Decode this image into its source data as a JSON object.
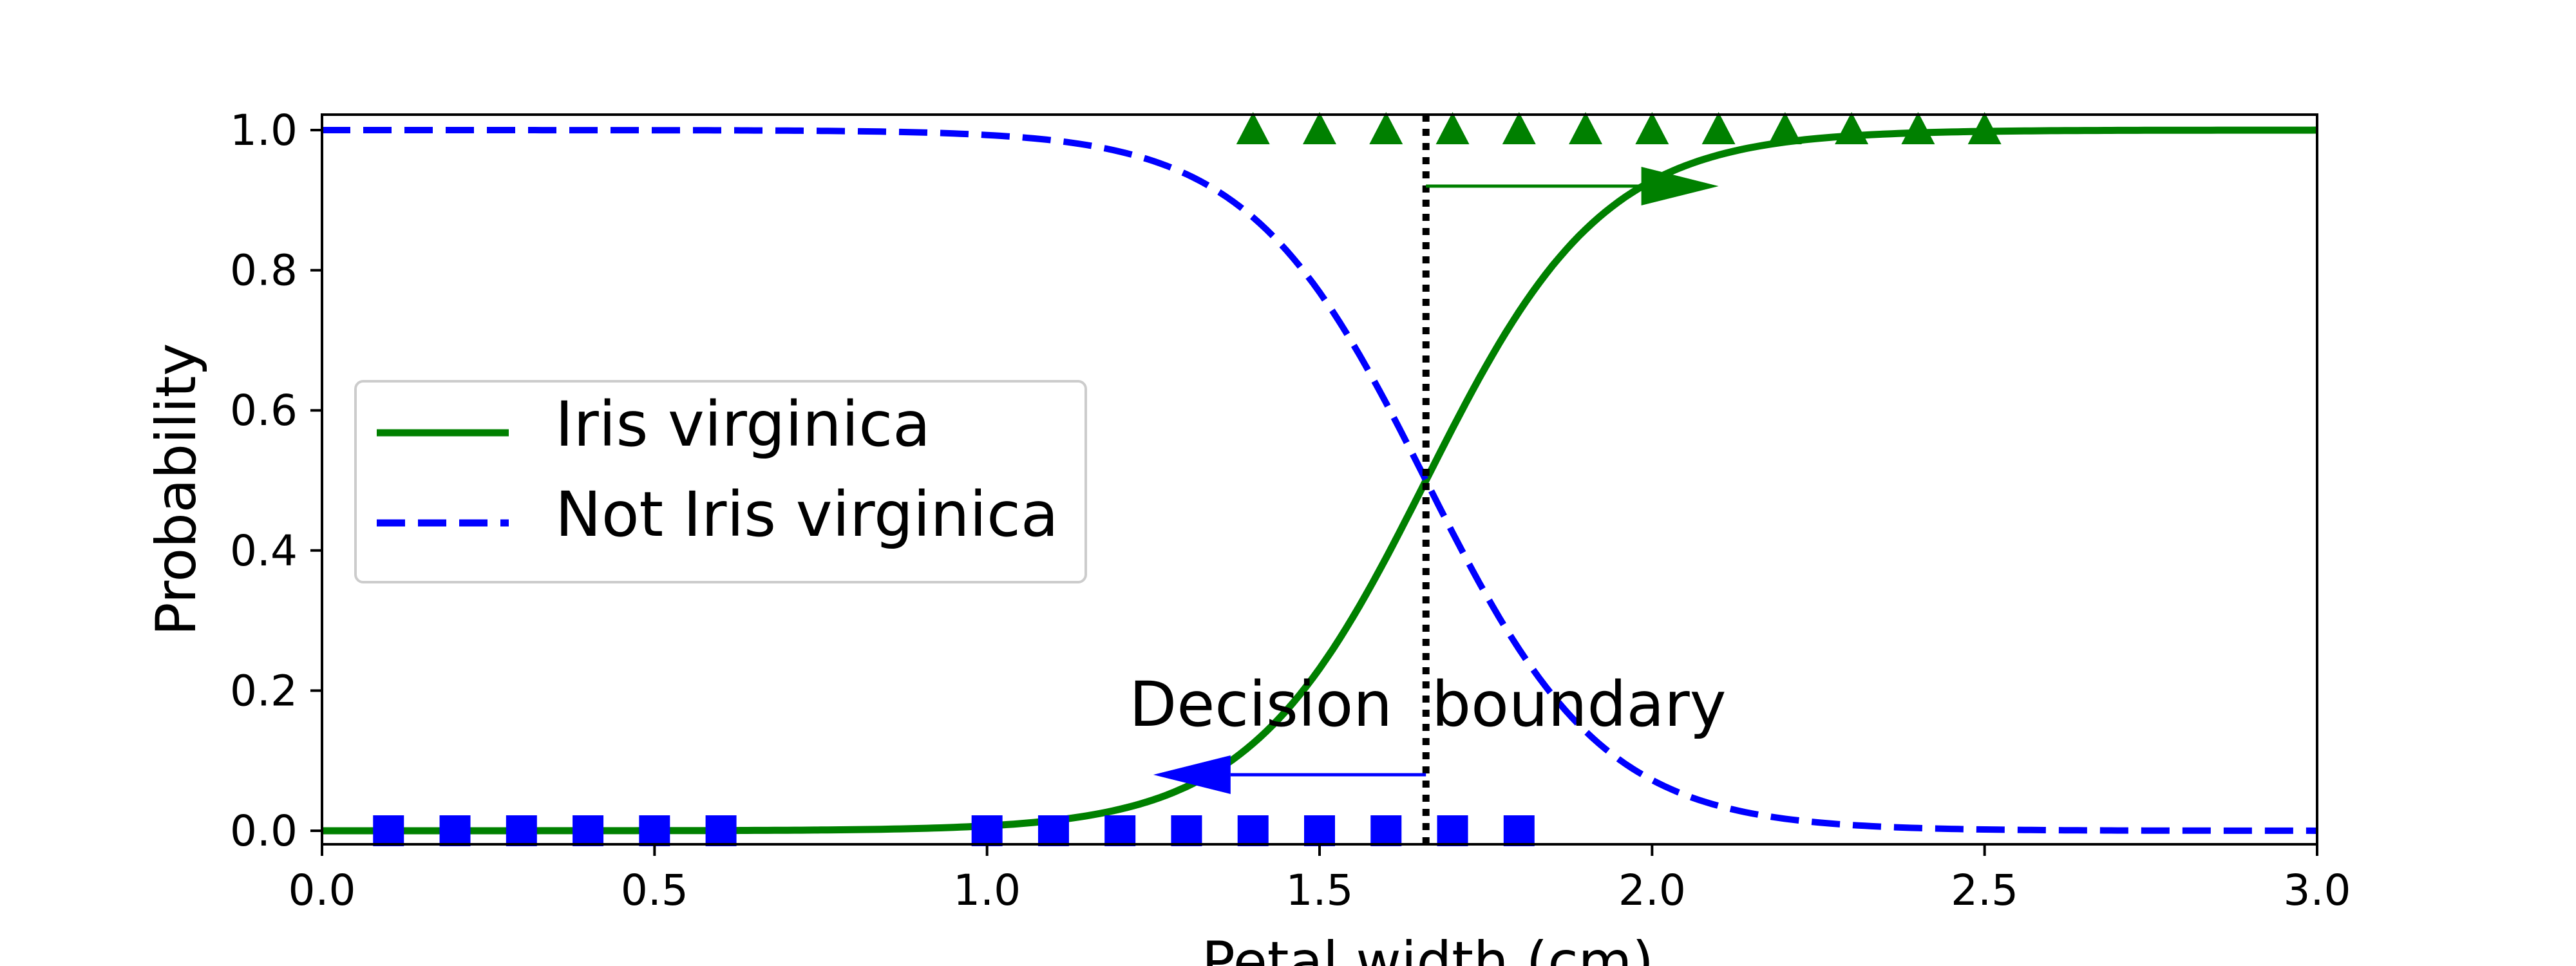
{
  "chart_data": {
    "type": "line",
    "title": "",
    "xlabel": "Petal width (cm)",
    "ylabel": "Probability",
    "xlim": [
      0.0,
      3.0
    ],
    "ylim": [
      0.0,
      1.0
    ],
    "xticks": [
      "0.0",
      "0.5",
      "1.0",
      "1.5",
      "2.0",
      "2.5",
      "3.0"
    ],
    "yticks": [
      "0.0",
      "0.2",
      "0.4",
      "0.6",
      "0.8",
      "1.0"
    ],
    "grid": false,
    "legend_position": "center-left",
    "decision_boundary": 1.66,
    "annotation": "Decision  boundary",
    "logistic": {
      "midpoint": 1.66,
      "steepness": 7.5
    },
    "series": [
      {
        "name": "Iris virginica",
        "style": "solid",
        "color": "#008000"
      },
      {
        "name": "Not Iris virginica",
        "style": "dashed",
        "color": "#0000ff"
      }
    ],
    "positive_samples": {
      "y": 1.0,
      "marker": "triangle",
      "color": "#008000",
      "x": [
        1.4,
        1.5,
        1.6,
        1.7,
        1.8,
        1.9,
        2.0,
        2.1,
        2.2,
        2.3,
        2.4,
        2.5
      ]
    },
    "negative_samples": {
      "y": 0.0,
      "marker": "square",
      "color": "#0000ff",
      "x": [
        0.1,
        0.2,
        0.3,
        0.4,
        0.5,
        0.6,
        1.0,
        1.1,
        1.2,
        1.3,
        1.4,
        1.5,
        1.6,
        1.7,
        1.8
      ]
    },
    "arrows": [
      {
        "direction": "right",
        "color": "#008000",
        "y": 0.92,
        "from_x": 1.66,
        "to_x": 2.1
      },
      {
        "direction": "left",
        "color": "#0000ff",
        "y": 0.08,
        "from_x": 1.66,
        "to_x": 1.25
      }
    ]
  }
}
